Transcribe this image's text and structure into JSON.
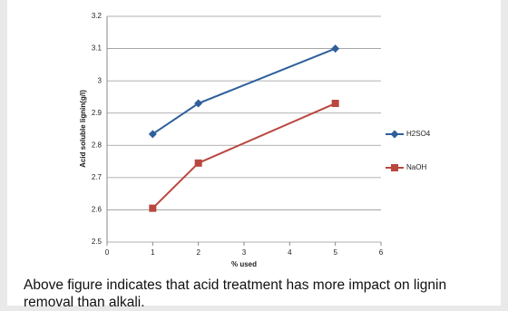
{
  "chart_data": {
    "type": "line",
    "x": [
      1,
      2,
      5
    ],
    "series": [
      {
        "name": "H2SO4",
        "color": "#2e5f9c",
        "marker": "diamond",
        "values": [
          2.835,
          2.93,
          3.1
        ]
      },
      {
        "name": "NaOH",
        "color": "#b9473f",
        "marker": "square",
        "values": [
          2.605,
          2.745,
          2.93
        ]
      }
    ],
    "xlabel": "% used",
    "ylabel": "Acid soluble lignin(g/l)",
    "xlim": [
      0,
      6
    ],
    "xticks": [
      0,
      1,
      2,
      3,
      4,
      5,
      6
    ],
    "ylim": [
      2.5,
      3.2
    ],
    "yticks": [
      2.5,
      2.6,
      2.7,
      2.8,
      2.9,
      3,
      3.1,
      3.2
    ],
    "grid": true,
    "legend": "right"
  },
  "caption": "Above figure indicates that acid treatment has more impact on lignin removal than alkali."
}
